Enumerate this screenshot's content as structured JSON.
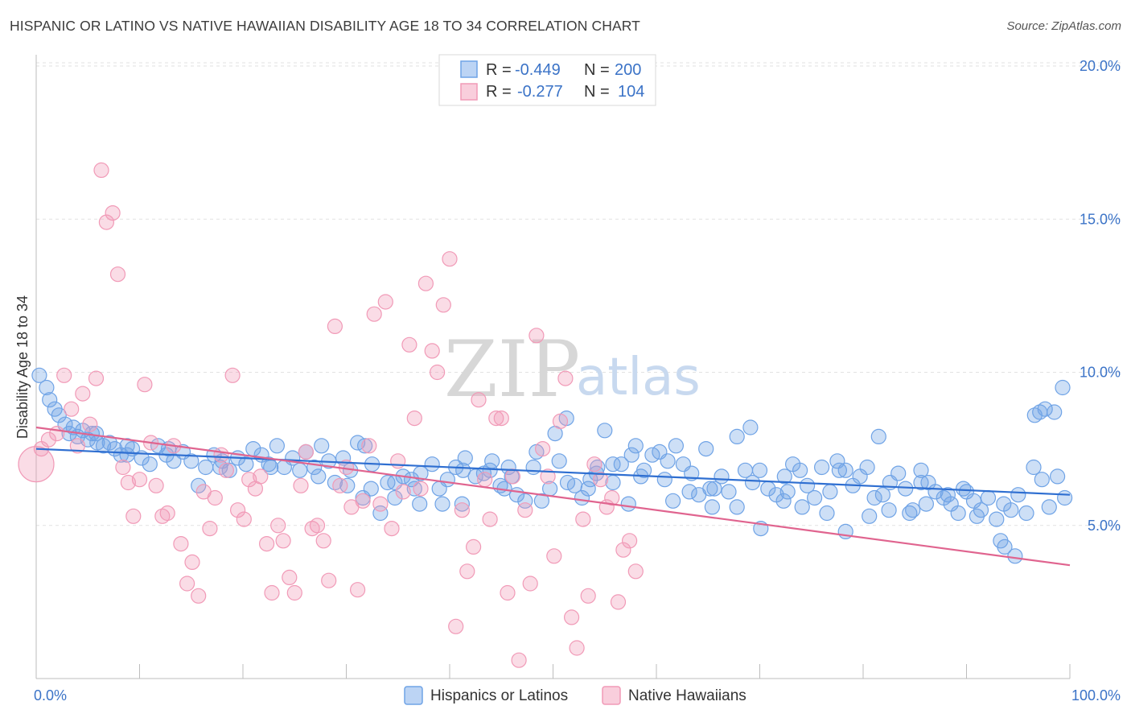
{
  "title": "HISPANIC OR LATINO VS NATIVE HAWAIIAN DISABILITY AGE 18 TO 34 CORRELATION CHART",
  "source": "Source: ZipAtlas.com",
  "watermark": {
    "zip": "ZIP",
    "atlas": "atlas"
  },
  "legend": {
    "rows": [
      {
        "r_label": "R =",
        "r_value": "-0.449",
        "n_label": "N =",
        "n_value": "200"
      },
      {
        "r_label": "R =",
        "r_value": "-0.277",
        "n_label": "N =",
        "n_value": "104"
      }
    ]
  },
  "chart_data": {
    "type": "scatter",
    "title": "HISPANIC OR LATINO VS NATIVE HAWAIIAN DISABILITY AGE 18 TO 34 CORRELATION CHART",
    "xlabel": "",
    "ylabel": "Disability Age 18 to 34",
    "xlim": [
      0,
      100
    ],
    "ylim": [
      0,
      20.8
    ],
    "y_ticks": [
      5,
      10,
      15,
      20
    ],
    "y_tick_labels": [
      "5.0%",
      "10.0%",
      "15.0%",
      "20.0%"
    ],
    "x_tick_labels": [
      "0.0%",
      "100.0%"
    ],
    "grid": true,
    "legend_position": "top-center",
    "colors": {
      "blue": "#6fa3e6",
      "pink": "#f19ab7",
      "blue_line": "#2f6fd1",
      "pink_line": "#e0648f"
    },
    "series": [
      {
        "name": "Hispanics or Latinos",
        "color": "#6fa3e6",
        "trend": {
          "x": [
            0,
            100
          ],
          "y": [
            7.5,
            6.0
          ]
        },
        "points": [
          [
            0.3,
            9.9
          ],
          [
            1,
            9.5
          ],
          [
            1.3,
            9.1
          ],
          [
            1.8,
            8.8
          ],
          [
            2.2,
            8.6
          ],
          [
            2.8,
            8.3
          ],
          [
            3.2,
            8.0
          ],
          [
            3.6,
            8.2
          ],
          [
            4,
            7.9
          ],
          [
            4.5,
            8.1
          ],
          [
            5,
            7.8
          ],
          [
            5.4,
            8.0
          ],
          [
            5.9,
            7.7
          ],
          [
            6.5,
            7.6
          ],
          [
            7.1,
            7.7
          ],
          [
            7.6,
            7.5
          ],
          [
            8.2,
            7.3
          ],
          [
            8.8,
            7.6
          ],
          [
            9.3,
            7.5
          ],
          [
            10.2,
            7.2
          ],
          [
            11,
            7.0
          ],
          [
            11.8,
            7.6
          ],
          [
            12.6,
            7.3
          ],
          [
            13.3,
            7.1
          ],
          [
            14.2,
            7.4
          ],
          [
            15,
            7.1
          ],
          [
            15.7,
            6.3
          ],
          [
            16.4,
            6.9
          ],
          [
            17.2,
            7.3
          ],
          [
            18,
            7.1
          ],
          [
            18.7,
            6.8
          ],
          [
            19.5,
            7.2
          ],
          [
            20.3,
            7.0
          ],
          [
            21,
            7.5
          ],
          [
            21.8,
            7.3
          ],
          [
            22.5,
            7.0
          ],
          [
            23.3,
            7.6
          ],
          [
            24,
            6.9
          ],
          [
            24.8,
            7.2
          ],
          [
            25.5,
            6.8
          ],
          [
            26.1,
            7.4
          ],
          [
            26.9,
            6.9
          ],
          [
            27.6,
            7.6
          ],
          [
            28.3,
            7.1
          ],
          [
            28.9,
            6.4
          ],
          [
            29.7,
            7.2
          ],
          [
            30.4,
            6.8
          ],
          [
            31.1,
            7.7
          ],
          [
            31.8,
            7.6
          ],
          [
            32.5,
            7.0
          ],
          [
            33.3,
            5.4
          ],
          [
            34,
            6.4
          ],
          [
            34.7,
            5.9
          ],
          [
            35.5,
            6.6
          ],
          [
            36.3,
            6.5
          ],
          [
            37.2,
            6.7
          ],
          [
            38.3,
            7.0
          ],
          [
            39,
            6.2
          ],
          [
            39.8,
            6.5
          ],
          [
            40.6,
            6.9
          ],
          [
            41.5,
            7.2
          ],
          [
            42.5,
            6.6
          ],
          [
            43.3,
            6.7
          ],
          [
            44.1,
            7.1
          ],
          [
            44.9,
            6.3
          ],
          [
            45.7,
            6.9
          ],
          [
            46.5,
            6.0
          ],
          [
            47.3,
            5.8
          ],
          [
            48.1,
            6.9
          ],
          [
            48.9,
            5.8
          ],
          [
            49.7,
            6.2
          ],
          [
            50.6,
            7.1
          ],
          [
            51.4,
            6.4
          ],
          [
            52.1,
            6.3
          ],
          [
            52.8,
            5.9
          ],
          [
            53.6,
            6.5
          ],
          [
            54.3,
            6.9
          ],
          [
            55,
            8.1
          ],
          [
            55.8,
            6.4
          ],
          [
            56.6,
            7.0
          ],
          [
            57.3,
            5.7
          ],
          [
            58,
            7.6
          ],
          [
            58.8,
            6.8
          ],
          [
            59.6,
            7.3
          ],
          [
            60.3,
            7.4
          ],
          [
            61.1,
            7.1
          ],
          [
            61.9,
            7.6
          ],
          [
            62.6,
            7.0
          ],
          [
            63.4,
            6.7
          ],
          [
            64.1,
            6.0
          ],
          [
            64.8,
            7.5
          ],
          [
            65.6,
            6.2
          ],
          [
            66.3,
            6.6
          ],
          [
            67,
            6.1
          ],
          [
            67.8,
            7.9
          ],
          [
            68.6,
            6.8
          ],
          [
            69.3,
            6.4
          ],
          [
            70,
            6.8
          ],
          [
            70.8,
            6.2
          ],
          [
            71.6,
            6.0
          ],
          [
            72.4,
            6.6
          ],
          [
            73.2,
            7.0
          ],
          [
            73.9,
            6.8
          ],
          [
            74.6,
            6.3
          ],
          [
            75.3,
            5.9
          ],
          [
            76,
            6.9
          ],
          [
            76.8,
            6.1
          ],
          [
            77.5,
            7.1
          ],
          [
            78.3,
            6.8
          ],
          [
            79,
            6.3
          ],
          [
            79.7,
            6.6
          ],
          [
            80.4,
            6.9
          ],
          [
            81.1,
            5.9
          ],
          [
            81.9,
            6.0
          ],
          [
            82.6,
            6.4
          ],
          [
            83.4,
            6.7
          ],
          [
            84.1,
            6.2
          ],
          [
            84.8,
            5.5
          ],
          [
            85.6,
            6.8
          ],
          [
            86.3,
            6.4
          ],
          [
            87,
            6.1
          ],
          [
            87.8,
            5.9
          ],
          [
            88.5,
            5.7
          ],
          [
            89.2,
            5.4
          ],
          [
            90,
            6.1
          ],
          [
            90.7,
            5.8
          ],
          [
            91.4,
            5.5
          ],
          [
            92.1,
            5.9
          ],
          [
            92.9,
            5.2
          ],
          [
            93.6,
            5.7
          ],
          [
            94.3,
            5.5
          ],
          [
            95,
            6.0
          ],
          [
            95.8,
            5.4
          ],
          [
            96.5,
            6.9
          ],
          [
            97.3,
            6.5
          ],
          [
            98,
            5.6
          ],
          [
            98.8,
            6.6
          ],
          [
            99.5,
            5.9
          ],
          [
            5.8,
            8.0
          ],
          [
            8.8,
            7.3
          ],
          [
            12.8,
            7.5
          ],
          [
            17.8,
            6.9
          ],
          [
            22.7,
            6.9
          ],
          [
            27.3,
            6.6
          ],
          [
            31.6,
            5.9
          ],
          [
            36.6,
            6.2
          ],
          [
            41.3,
            6.8
          ],
          [
            45.3,
            6.2
          ],
          [
            50.2,
            8.0
          ],
          [
            54.2,
            6.7
          ],
          [
            57.6,
            7.3
          ],
          [
            61.6,
            5.8
          ],
          [
            65.2,
            6.2
          ],
          [
            69.1,
            8.2
          ],
          [
            72.7,
            6.1
          ],
          [
            77.7,
            6.8
          ],
          [
            81.5,
            7.9
          ],
          [
            85.6,
            6.4
          ],
          [
            89.7,
            6.2
          ],
          [
            93.7,
            4.3
          ],
          [
            97.1,
            8.7
          ],
          [
            99.3,
            9.5
          ],
          [
            98.5,
            8.7
          ],
          [
            97.6,
            8.8
          ],
          [
            96.6,
            8.6
          ],
          [
            94.7,
            4.0
          ],
          [
            93.3,
            4.5
          ],
          [
            91,
            5.3
          ],
          [
            88.2,
            6.0
          ],
          [
            86.1,
            5.7
          ],
          [
            84.5,
            5.4
          ],
          [
            82.5,
            5.5
          ],
          [
            80.6,
            5.3
          ],
          [
            78.3,
            4.8
          ],
          [
            76.5,
            5.4
          ],
          [
            74.1,
            5.6
          ],
          [
            72.3,
            5.8
          ],
          [
            70.1,
            4.9
          ],
          [
            67.8,
            5.6
          ],
          [
            65.4,
            5.6
          ],
          [
            63.2,
            6.1
          ],
          [
            60.8,
            6.5
          ],
          [
            58.5,
            6.6
          ],
          [
            55.8,
            7.0
          ],
          [
            53.4,
            6.2
          ],
          [
            51.3,
            8.5
          ],
          [
            48.4,
            7.4
          ],
          [
            46,
            6.6
          ],
          [
            43.9,
            6.8
          ],
          [
            41.2,
            5.7
          ],
          [
            39.3,
            5.7
          ],
          [
            37.1,
            5.7
          ],
          [
            34.7,
            6.4
          ],
          [
            32.4,
            6.2
          ],
          [
            30.1,
            6.3
          ]
        ]
      },
      {
        "name": "Native Hawaiians",
        "color": "#f19ab7",
        "trend": {
          "x": [
            0,
            100
          ],
          "y": [
            8.2,
            3.7
          ]
        },
        "points": [
          [
            0.5,
            7.5
          ],
          [
            1.2,
            7.8
          ],
          [
            2,
            8.0
          ],
          [
            2.7,
            9.9
          ],
          [
            3.4,
            8.8
          ],
          [
            4,
            7.6
          ],
          [
            4.5,
            9.3
          ],
          [
            5.2,
            8.3
          ],
          [
            5.8,
            9.8
          ],
          [
            6.3,
            16.6
          ],
          [
            6.8,
            14.9
          ],
          [
            7.4,
            15.2
          ],
          [
            7.9,
            13.2
          ],
          [
            8.4,
            6.9
          ],
          [
            8.9,
            6.4
          ],
          [
            9.4,
            5.3
          ],
          [
            10,
            6.5
          ],
          [
            10.5,
            9.6
          ],
          [
            11.1,
            7.7
          ],
          [
            11.6,
            6.3
          ],
          [
            12.2,
            5.3
          ],
          [
            12.7,
            5.4
          ],
          [
            13.3,
            7.6
          ],
          [
            14,
            4.4
          ],
          [
            14.6,
            3.1
          ],
          [
            15.1,
            3.8
          ],
          [
            15.7,
            2.7
          ],
          [
            16.2,
            6.1
          ],
          [
            16.8,
            4.9
          ],
          [
            17.3,
            5.9
          ],
          [
            17.9,
            7.3
          ],
          [
            18.4,
            6.8
          ],
          [
            19,
            9.9
          ],
          [
            19.5,
            5.5
          ],
          [
            20.1,
            5.2
          ],
          [
            20.6,
            6.5
          ],
          [
            21.2,
            6.2
          ],
          [
            21.7,
            6.6
          ],
          [
            22.3,
            4.4
          ],
          [
            22.8,
            2.8
          ],
          [
            23.4,
            5.0
          ],
          [
            23.9,
            4.5
          ],
          [
            24.5,
            3.3
          ],
          [
            25,
            2.8
          ],
          [
            25.6,
            6.3
          ],
          [
            26.1,
            7.4
          ],
          [
            26.7,
            4.9
          ],
          [
            27.2,
            5.0
          ],
          [
            27.8,
            4.5
          ],
          [
            28.3,
            3.2
          ],
          [
            28.9,
            11.5
          ],
          [
            29.4,
            6.3
          ],
          [
            30,
            6.9
          ],
          [
            30.5,
            5.6
          ],
          [
            31.1,
            2.9
          ],
          [
            31.6,
            5.8
          ],
          [
            32.2,
            7.6
          ],
          [
            32.7,
            11.9
          ],
          [
            33.3,
            5.7
          ],
          [
            33.8,
            12.3
          ],
          [
            34.4,
            4.9
          ],
          [
            35,
            7.1
          ],
          [
            35.5,
            6.1
          ],
          [
            36.1,
            10.9
          ],
          [
            36.6,
            8.5
          ],
          [
            37.2,
            6.2
          ],
          [
            37.7,
            12.9
          ],
          [
            38.3,
            10.7
          ],
          [
            38.8,
            10.0
          ],
          [
            39.4,
            12.2
          ],
          [
            40,
            13.7
          ],
          [
            40.6,
            1.7
          ],
          [
            41.2,
            5.5
          ],
          [
            41.7,
            3.5
          ],
          [
            42.3,
            4.3
          ],
          [
            42.8,
            9.1
          ],
          [
            43.4,
            6.5
          ],
          [
            43.9,
            5.2
          ],
          [
            44.5,
            8.5
          ],
          [
            45,
            8.5
          ],
          [
            45.6,
            2.8
          ],
          [
            46.1,
            6.6
          ],
          [
            46.7,
            0.6
          ],
          [
            47.3,
            5.5
          ],
          [
            47.8,
            3.1
          ],
          [
            48.4,
            11.2
          ],
          [
            49,
            7.5
          ],
          [
            49.5,
            6.6
          ],
          [
            50.1,
            4.0
          ],
          [
            50.7,
            8.4
          ],
          [
            51.2,
            9.8
          ],
          [
            51.8,
            2.0
          ],
          [
            52.3,
            1.0
          ],
          [
            52.9,
            5.2
          ],
          [
            53.4,
            2.7
          ],
          [
            54,
            7.0
          ],
          [
            54.6,
            6.5
          ],
          [
            55.2,
            5.6
          ],
          [
            55.7,
            5.9
          ],
          [
            56.3,
            2.5
          ],
          [
            56.8,
            4.2
          ],
          [
            57.4,
            4.5
          ],
          [
            58,
            3.5
          ]
        ]
      }
    ]
  },
  "bottom_legend": [
    "Hispanics or Latinos",
    "Native Hawaiians"
  ]
}
